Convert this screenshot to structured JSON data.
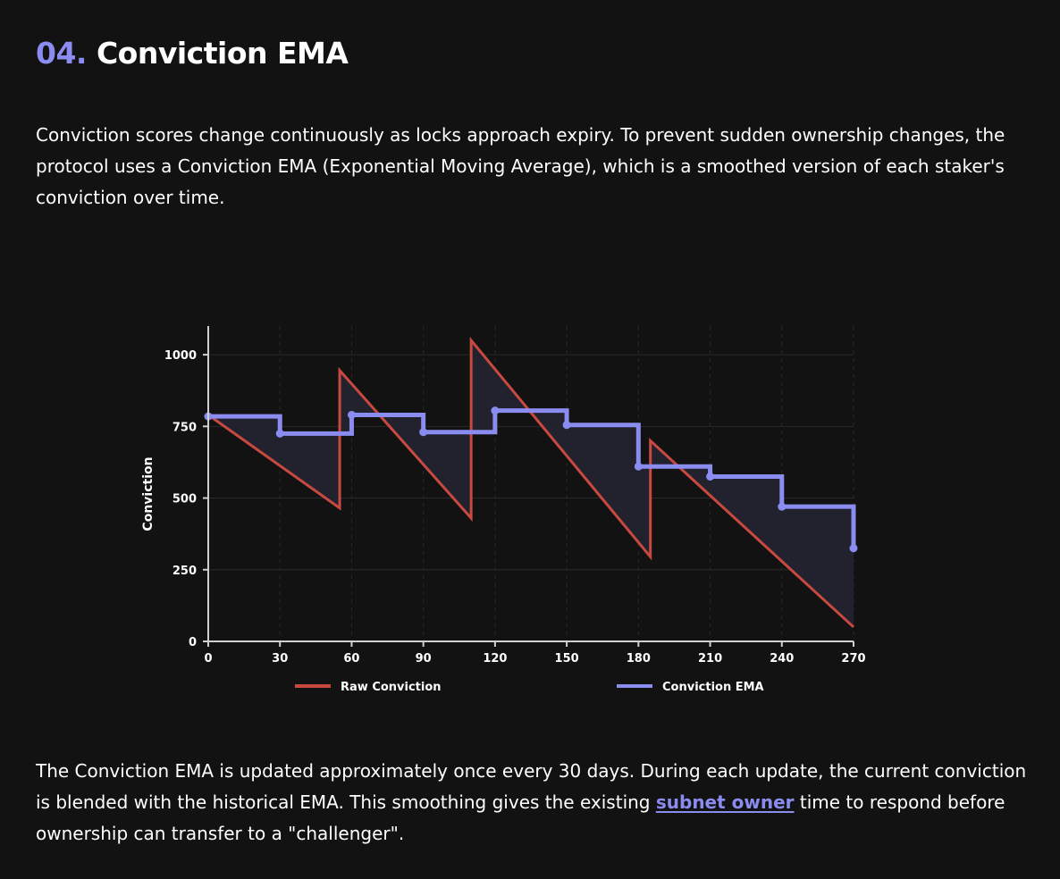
{
  "section": {
    "number": "04.",
    "title": "Conviction EMA"
  },
  "intro": "Conviction scores change continuously as locks approach expiry. To prevent sudden ownership changes, the protocol uses a Conviction EMA (Exponential Moving Average), which is a smoothed version of each staker's conviction over time.",
  "outro": {
    "before": "The Conviction EMA is updated approximately once every 30 days. During each update, the current conviction is blended with the historical EMA. This smoothing gives the existing ",
    "link": "subnet owner",
    "after": " time to respond before ownership can transfer to a \"challenger\"."
  },
  "colors": {
    "raw": "#c8493f",
    "ema": "#8a8cf0",
    "fill": "#22222f",
    "grid": "#2a2a2a",
    "axis": "#d0d0d0"
  },
  "chart_data": {
    "type": "line",
    "ylabel": "Conviction",
    "xlim": [
      0,
      270
    ],
    "ylim": [
      0,
      1100
    ],
    "xticks": [
      0,
      30,
      60,
      90,
      120,
      150,
      180,
      210,
      240,
      270
    ],
    "yticks": [
      0,
      250,
      500,
      750,
      1000
    ],
    "grid": true,
    "legend_position": "bottom",
    "series": [
      {
        "name": "Raw Conviction",
        "color": "#c8493f",
        "points": [
          [
            0,
            790
          ],
          [
            55,
            465
          ],
          [
            55,
            945
          ],
          [
            110,
            430
          ],
          [
            110,
            1050
          ],
          [
            185,
            295
          ],
          [
            185,
            700
          ],
          [
            270,
            50
          ]
        ]
      },
      {
        "name": "Conviction EMA",
        "color": "#8a8cf0",
        "step": true,
        "points": [
          [
            0,
            785
          ],
          [
            30,
            725
          ],
          [
            60,
            790
          ],
          [
            90,
            730
          ],
          [
            120,
            805
          ],
          [
            150,
            755
          ],
          [
            180,
            610
          ],
          [
            210,
            575
          ],
          [
            240,
            470
          ],
          [
            270,
            325
          ]
        ]
      }
    ]
  }
}
